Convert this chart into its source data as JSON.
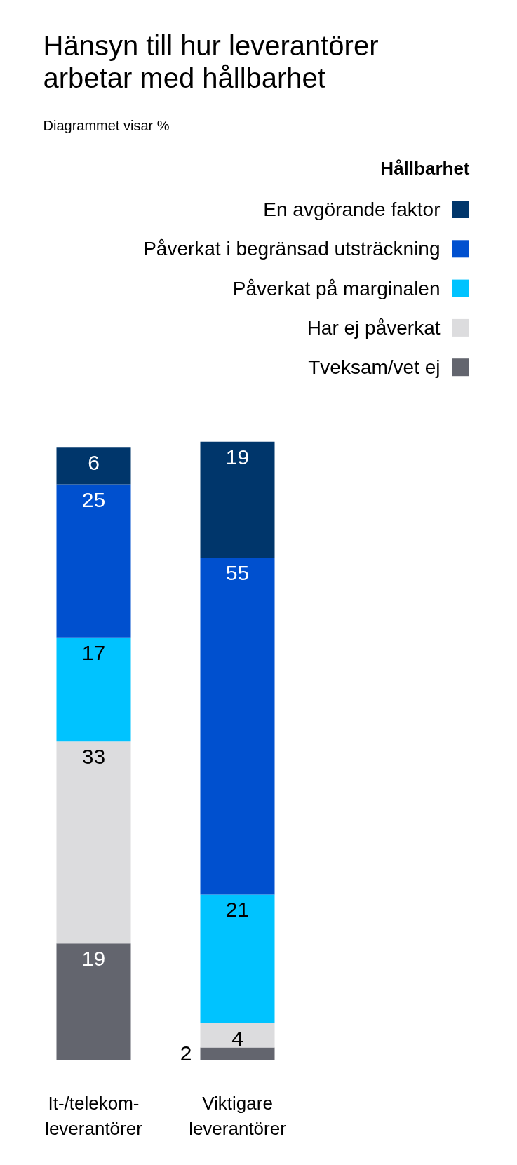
{
  "chart_data": {
    "type": "bar",
    "title": "Hänsyn till hur leverantörer arbetar med hållbarhet",
    "subtitle": "Diagrammet visar %",
    "legend_title": "Hållbarhet",
    "legend": "top right",
    "stacked": true,
    "data_labels": true,
    "categories": [
      "It-/telekom-leverantörer",
      "Viktigare leverantörer"
    ],
    "series": [
      {
        "name": "Tveksam/vet ej",
        "color": "#63656e",
        "values": [
          19,
          2
        ]
      },
      {
        "name": "Har ej påverkat",
        "color": "#dcdcde",
        "values": [
          33,
          4
        ]
      },
      {
        "name": "Påverkat på marginalen",
        "color": "#00c3ff",
        "values": [
          17,
          21
        ]
      },
      {
        "name": "Påverkat i begränsad utsträckning",
        "color": "#0050cf",
        "values": [
          25,
          55
        ]
      },
      {
        "name": "En avgörande faktor",
        "color": "#00366b",
        "values": [
          6,
          19
        ]
      }
    ]
  }
}
